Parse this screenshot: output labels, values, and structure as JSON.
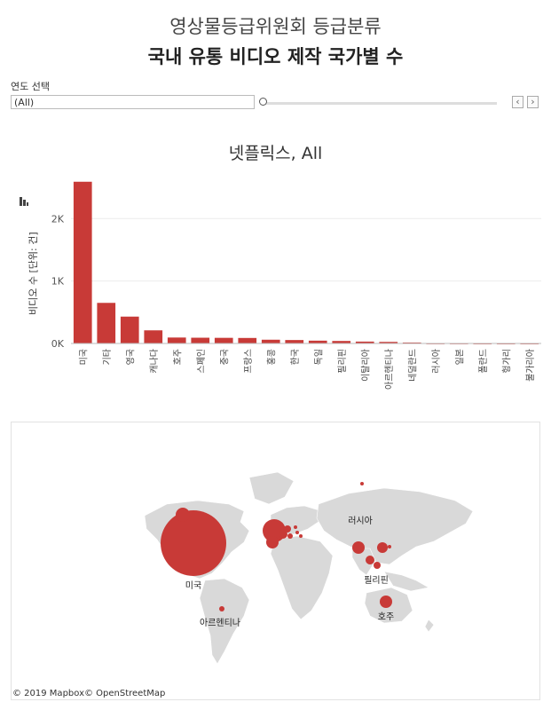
{
  "header": {
    "title_line1": "영상물등급위원회 등급분류",
    "title_line2": "국내 유통 비디오 제작 국가별 수"
  },
  "filter": {
    "label": "연도 선택",
    "value": "(All)",
    "prev_icon": "chevron-left-icon",
    "next_icon": "chevron-right-icon"
  },
  "chart_data": {
    "type": "bar",
    "title": "넷플릭스, All",
    "ylabel": "비디오 수 [단위: 건]",
    "xlabel": "",
    "ylim": [
      0,
      2800
    ],
    "yticks": [
      0,
      1000,
      2000
    ],
    "ytick_labels": [
      "0K",
      "1K",
      "2K"
    ],
    "grid": true,
    "bar_color": "#c83a37",
    "categories": [
      "미국",
      "기타",
      "영국",
      "캐나다",
      "호주",
      "스페인",
      "중국",
      "프랑스",
      "홍콩",
      "한국",
      "독일",
      "필리핀",
      "이탈리아",
      "아르헨티나",
      "네덜란드",
      "러시아",
      "일본",
      "폴란드",
      "헝가리",
      "불가리아"
    ],
    "values": [
      2590,
      650,
      430,
      210,
      95,
      92,
      90,
      88,
      60,
      55,
      45,
      40,
      30,
      25,
      15,
      3,
      3,
      2,
      2,
      2
    ]
  },
  "map": {
    "credit": "© 2019 Mapbox© OpenStreetMap",
    "bubble_color": "#c83a37",
    "labels": {
      "usa": "미국",
      "argentina": "아르헨티나",
      "russia": "러시아",
      "philippines": "필리핀",
      "australia": "호주"
    }
  }
}
